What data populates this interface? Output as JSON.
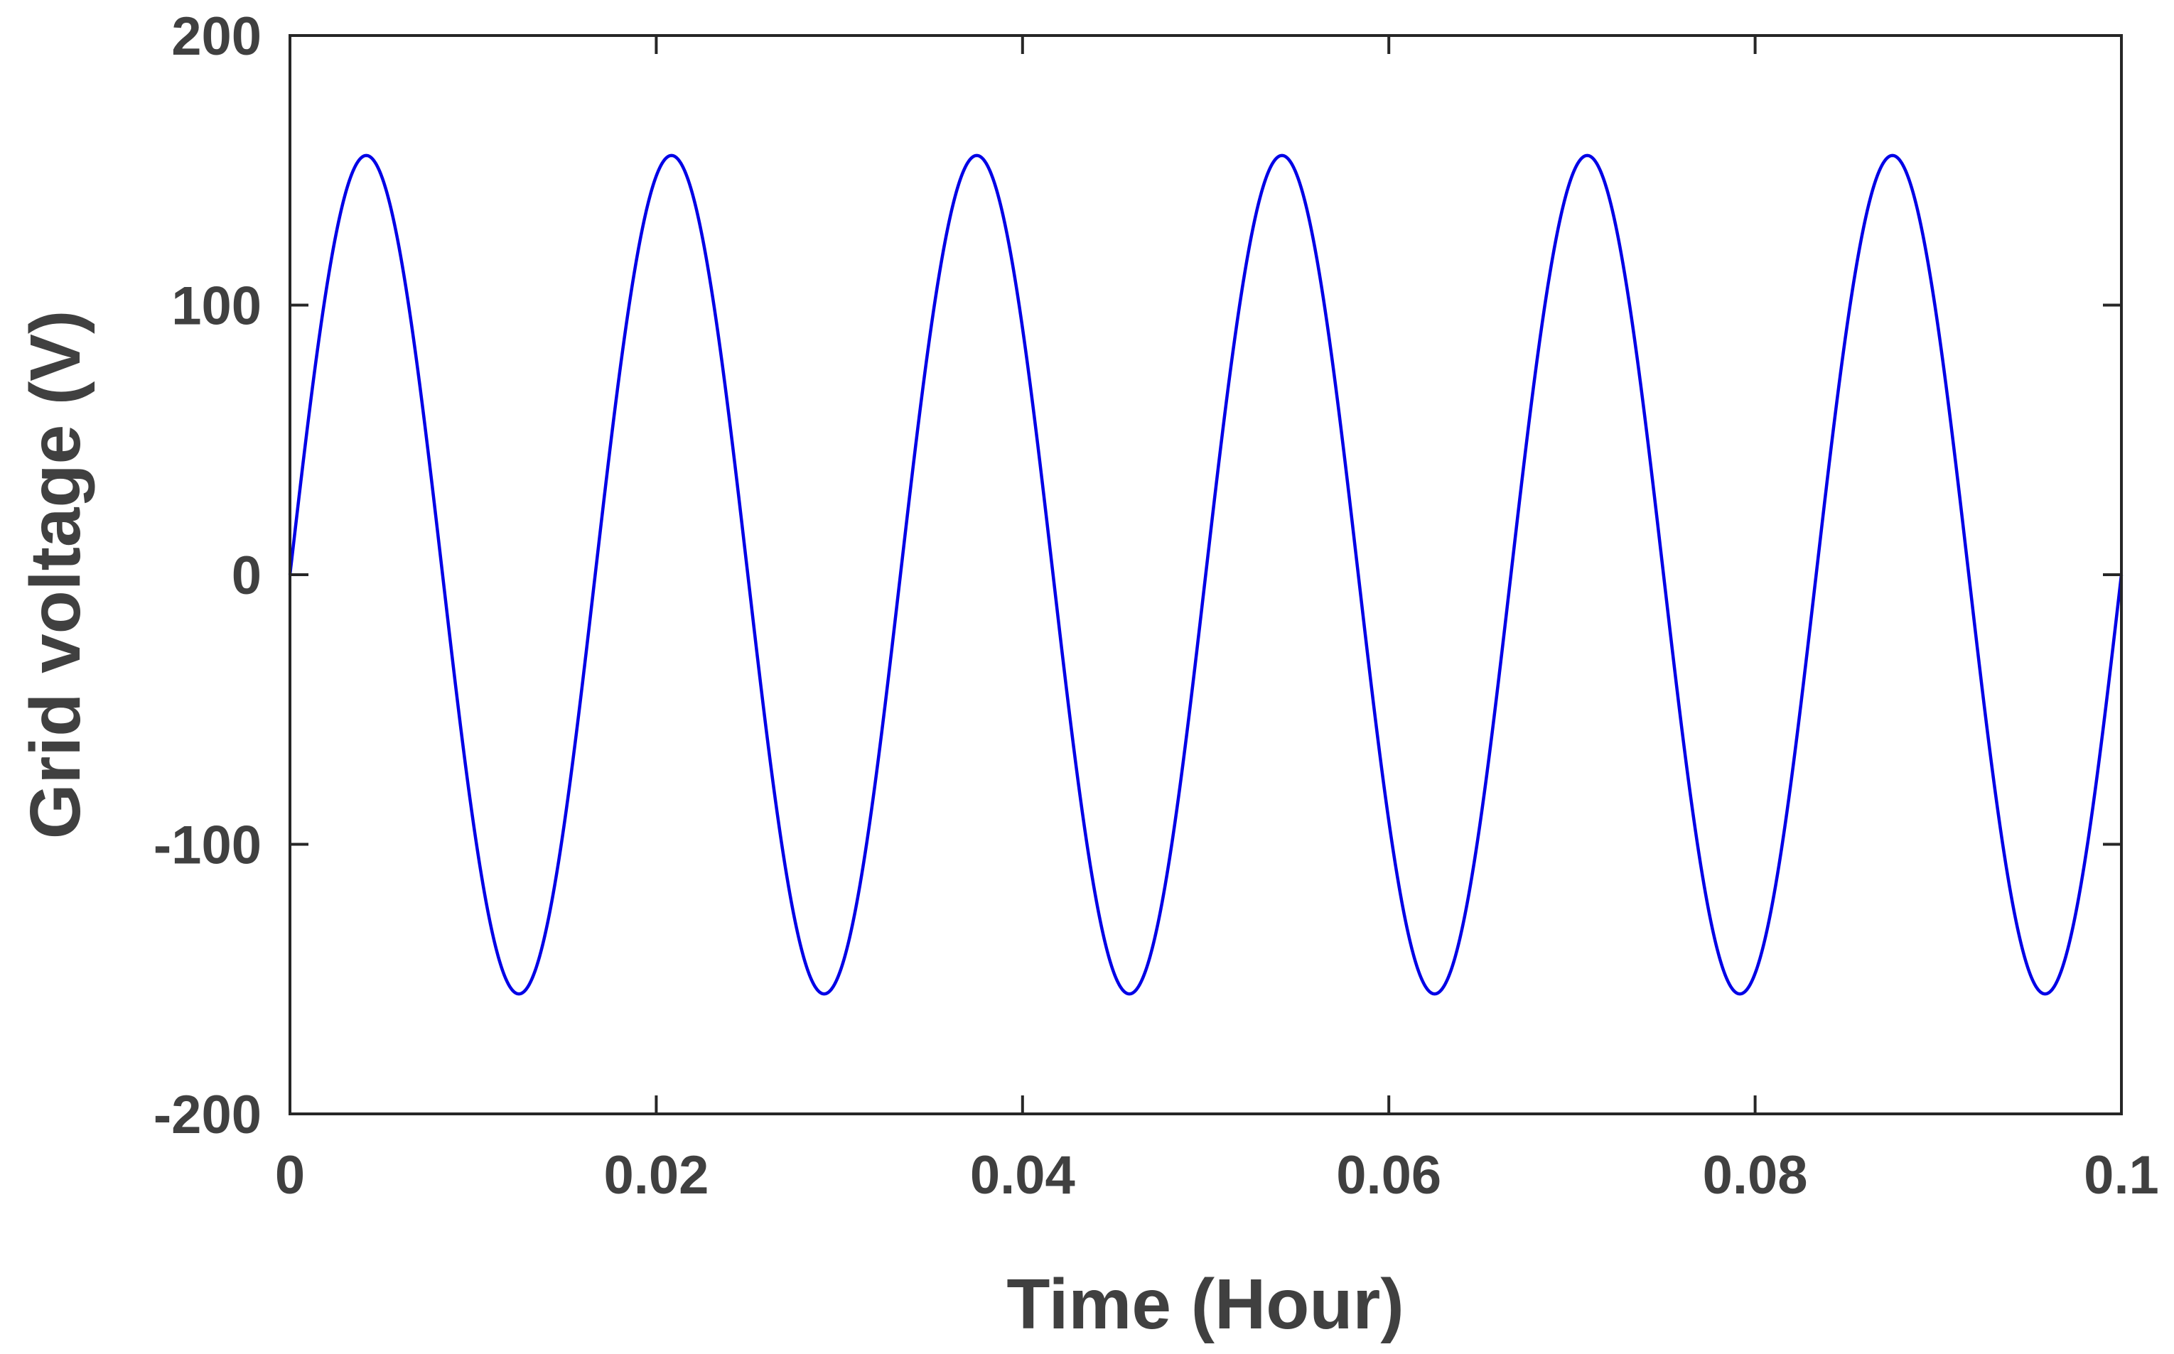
{
  "chart_data": {
    "type": "line",
    "title": "",
    "xlabel": "Time (Hour)",
    "ylabel": "Grid voltage (V)",
    "xlim": [
      0,
      0.1
    ],
    "ylim": [
      -200,
      200
    ],
    "xticks": [
      0,
      0.02,
      0.04,
      0.06,
      0.08,
      0.1
    ],
    "yticks": [
      -200,
      -100,
      0,
      100,
      200
    ],
    "xtick_labels": [
      "0",
      "0.02",
      "0.04",
      "0.06",
      "0.08",
      "0.1"
    ],
    "ytick_labels": [
      "-200",
      "-100",
      "0",
      "100",
      "200"
    ],
    "grid": false,
    "legend": "none",
    "line_color": "#0000e6",
    "series": [
      {
        "signal": "sine",
        "amplitude": 155.5,
        "frequency": 60,
        "phase": 0,
        "x_start": 0,
        "x_end": 0.1
      }
    ]
  }
}
